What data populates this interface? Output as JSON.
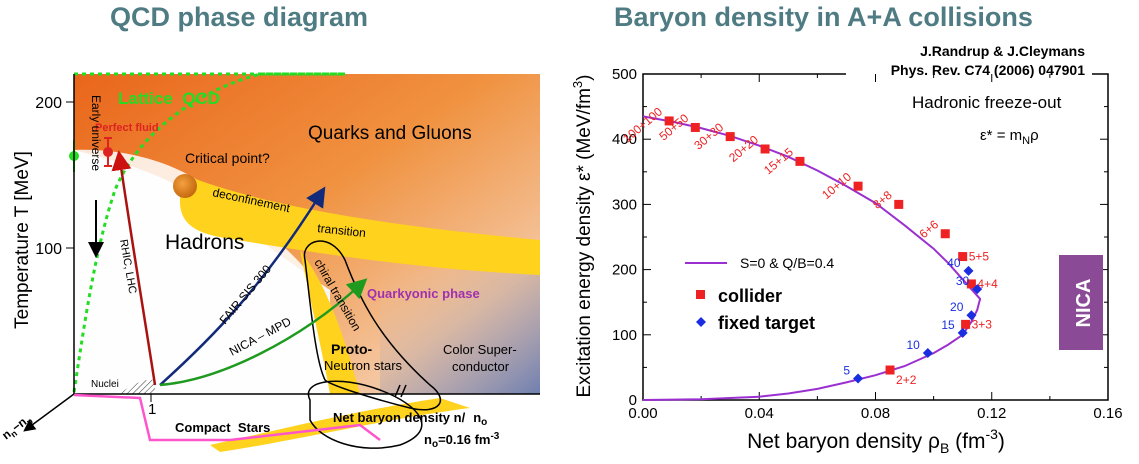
{
  "left_panel": {
    "title": "QCD phase diagram",
    "y_axis_label": "Temperature T [MeV]",
    "y_ticks": [
      "200",
      "100"
    ],
    "x_tick": "1",
    "x_axis_label": "Net baryon density n/",
    "x_axis_unit": "n",
    "x_axis_unit_sub": "o",
    "n0_label": "n",
    "n0_sub": "o",
    "n0_value": "=0.16 fm",
    "n0_sup": "-3",
    "corner_label": "n",
    "corner_sub1": "n",
    "corner_minus": "−n",
    "corner_sub2": "p",
    "regions": {
      "lattice": "Lattice  QCD",
      "perfect_fluid": "Perfect fluid",
      "early_universe": "Early universe",
      "quarks_gluons": "Quarks and Gluons",
      "critical_point": "Critical point?",
      "deconfinement": "deconfinement",
      "transition": "transition",
      "hadrons": "Hadrons",
      "rhic": "RHIC, LHC",
      "fair": "FAIR SIS 300",
      "chiral": "chiral transition",
      "quarkyonic": "Quarkyonic phase",
      "nica": "NICA – MPD",
      "nuclei": "Nuclei",
      "proto": "Proto-",
      "neutron_stars": "Neutron stars",
      "color_super": "Color Super-",
      "conductor": "conductor",
      "compact_stars": "Compact  Stars"
    }
  },
  "right_panel": {
    "title": "Baryon density in A+A collisions",
    "citation_line1": "J.Randrup & J.Cleymans",
    "citation_line2": "Phys. Rev. C74 (2006) 047901",
    "freeze_out": "Hadronic freeze-out",
    "formula": "ε* = m",
    "formula_sub": "N",
    "formula_end": "ρ",
    "legend_line": "S=0 & Q/B=0.4",
    "legend_collider": "collider",
    "legend_fixed": "fixed target",
    "nica_badge": "NICA",
    "y_axis_label": "Excitation energy density ε* (MeV/fm",
    "y_axis_sup": "3",
    "y_axis_end": ")",
    "x_axis_label": "Net baryon density ρ",
    "x_axis_sub": "B",
    "x_axis_unit": " (fm",
    "x_axis_sup": "-3",
    "x_axis_end": ")"
  },
  "colors": {
    "title": "#4f7b83",
    "curve": "#9b30d0",
    "collider": "#ee2222",
    "fixed_target": "#1a2ee0",
    "nica_badge": "#8b4a96",
    "lattice_green": "#22dd22",
    "quarkyonic": "#a030b0"
  },
  "chart_data": {
    "type": "line",
    "title": "Baryon density in A+A collisions",
    "xlabel": "Net baryon density ρB (fm-3)",
    "ylabel": "Excitation energy density ε* (MeV/fm3)",
    "xlim": [
      0.0,
      0.16
    ],
    "ylim": [
      0,
      500
    ],
    "x_ticks": [
      "0.00",
      "0.04",
      "0.08",
      "0.12",
      "0.16"
    ],
    "y_ticks": [
      "0",
      "100",
      "200",
      "300",
      "400",
      "500"
    ],
    "grid": false,
    "legend": "left",
    "series": [
      {
        "name": "S=0 & Q/B=0.4",
        "style": "line",
        "x": [
          0.0,
          0.01,
          0.02,
          0.03,
          0.04,
          0.05,
          0.06,
          0.07,
          0.08,
          0.09,
          0.1,
          0.105,
          0.11,
          0.113,
          0.115,
          0.116,
          0.115,
          0.113,
          0.11,
          0.105,
          0.1,
          0.09,
          0.08,
          0.07,
          0.06,
          0.05,
          0.04,
          0.02,
          0.0
        ],
        "y": [
          435,
          427,
          417,
          405,
          390,
          373,
          352,
          328,
          302,
          268,
          232,
          210,
          185,
          170,
          160,
          155,
          138,
          120,
          100,
          85,
          72,
          52,
          38,
          27,
          17,
          10,
          5,
          1,
          0
        ]
      },
      {
        "name": "collider",
        "style": "marker",
        "x": [
          0.009,
          0.018,
          0.03,
          0.042,
          0.054,
          0.074,
          0.088,
          0.104,
          0.11,
          0.113,
          0.111,
          0.085
        ],
        "y": [
          428,
          418,
          404,
          385,
          366,
          328,
          300,
          255,
          220,
          178,
          116,
          46
        ],
        "labels": [
          "100+100",
          "50+50",
          "30+30",
          "20+20",
          "15+15",
          "10+10",
          "8+8",
          "6+6",
          "5+5",
          "4+4",
          "3+3",
          "2+2"
        ]
      },
      {
        "name": "fixed target",
        "style": "marker",
        "x": [
          0.112,
          0.115,
          0.113,
          0.11,
          0.098,
          0.074
        ],
        "y": [
          198,
          170,
          130,
          103,
          72,
          33
        ],
        "labels": [
          "40",
          "30",
          "20",
          "15",
          "10",
          "5"
        ]
      }
    ]
  }
}
